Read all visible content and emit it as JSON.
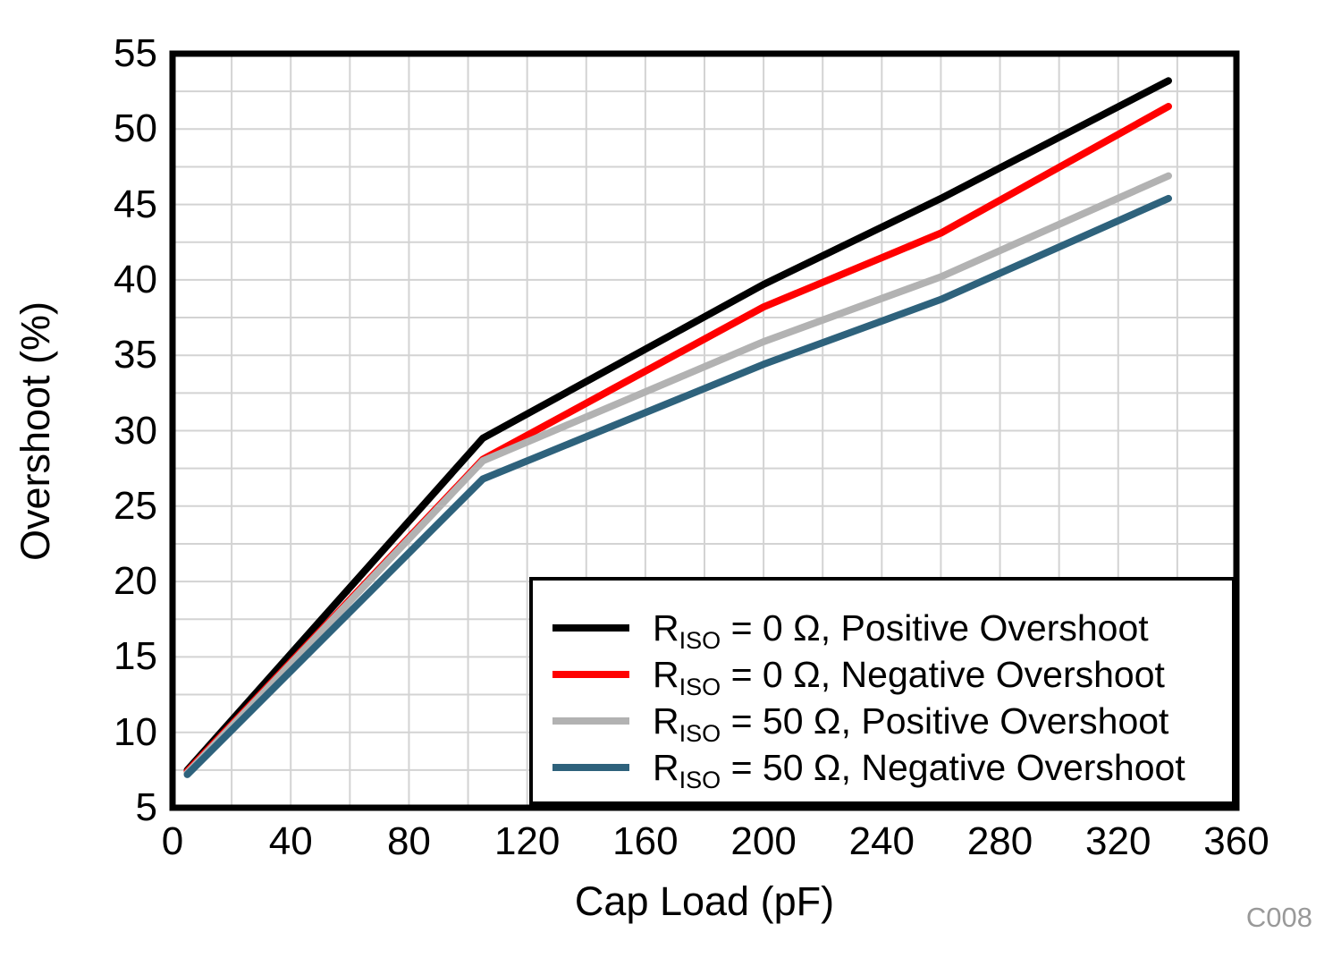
{
  "chart_data": {
    "type": "line",
    "title": "",
    "xlabel": "Cap Load (pF)",
    "ylabel": "Overshoot (%)",
    "xlim": [
      0,
      360
    ],
    "ylim": [
      5,
      55
    ],
    "x_ticks": [
      0,
      40,
      80,
      120,
      160,
      200,
      240,
      280,
      320,
      360
    ],
    "y_ticks": [
      5,
      10,
      15,
      20,
      25,
      30,
      35,
      40,
      45,
      50,
      55
    ],
    "x_minor_step": 20,
    "y_minor_step": 2.5,
    "grid": true,
    "legend_position": "inside-bottom-right",
    "watermark": "C008",
    "colors": {
      "grid": "#D3D3D3",
      "axis": "#000000",
      "watermark": "#999999",
      "background": "#FFFFFF"
    },
    "series": [
      {
        "name": "RISO = 0 Ω, Positive Overshoot",
        "legend": {
          "base": "R",
          "sub": "ISO",
          "rest": " = 0 Ω, Positive Overshoot"
        },
        "color": "#000000",
        "points": [
          [
            5,
            7.5
          ],
          [
            105,
            29.5
          ],
          [
            200,
            39.7
          ],
          [
            260,
            45.4
          ],
          [
            337,
            53.2
          ]
        ]
      },
      {
        "name": "RISO = 0 Ω, Negative Overshoot",
        "legend": {
          "base": "R",
          "sub": "ISO",
          "rest": " = 0 Ω, Negative Overshoot"
        },
        "color": "#FF0000",
        "points": [
          [
            5,
            7.4
          ],
          [
            105,
            28.1
          ],
          [
            200,
            38.2
          ],
          [
            260,
            43.1
          ],
          [
            337,
            51.5
          ]
        ]
      },
      {
        "name": "RISO = 50 Ω, Positive Overshoot",
        "legend": {
          "base": "R",
          "sub": "ISO",
          "rest": " = 50 Ω, Positive Overshoot"
        },
        "color": "#B2B2B2",
        "points": [
          [
            5,
            7.3
          ],
          [
            105,
            28.0
          ],
          [
            200,
            35.9
          ],
          [
            260,
            40.2
          ],
          [
            337,
            46.9
          ]
        ]
      },
      {
        "name": "RISO = 50 Ω, Negative Overshoot",
        "legend": {
          "base": "R",
          "sub": "ISO",
          "rest": " = 50 Ω, Negative Overshoot"
        },
        "color": "#2E627C",
        "points": [
          [
            5,
            7.2
          ],
          [
            105,
            26.8
          ],
          [
            200,
            34.4
          ],
          [
            260,
            38.7
          ],
          [
            337,
            45.4
          ]
        ]
      }
    ]
  }
}
